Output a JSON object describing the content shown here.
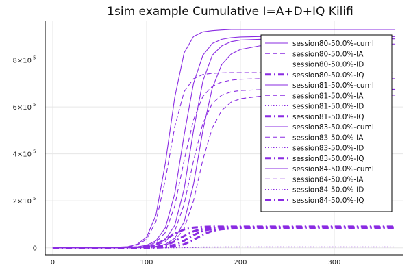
{
  "chart_data": {
    "type": "line",
    "title": "1sim example Cumulative I=A+D+IQ Kilifi",
    "xlabel": "",
    "ylabel": "",
    "xlim": [
      -8,
      373
    ],
    "ylim": [
      -30000,
      965000
    ],
    "x_ticks": [
      0,
      100,
      200,
      300
    ],
    "y_ticks": [
      {
        "value": 0,
        "label": "0",
        "exp": ""
      },
      {
        "value": 200000,
        "label": "2×10",
        "exp": "5"
      },
      {
        "value": 400000,
        "label": "4×10",
        "exp": "5"
      },
      {
        "value": 600000,
        "label": "6×10",
        "exp": "5"
      },
      {
        "value": 800000,
        "label": "8×10",
        "exp": "5"
      }
    ],
    "grid": true,
    "legend_position": "right",
    "color": "#8a2be2",
    "x": [
      0,
      60,
      80,
      90,
      100,
      110,
      120,
      130,
      140,
      150,
      160,
      170,
      180,
      190,
      200,
      220,
      240,
      270,
      300,
      330,
      365
    ],
    "series": [
      {
        "name": "session80-50.0%-cuml",
        "style": "solid",
        "values": [
          0,
          1200,
          5000,
          15000,
          45000,
          140000,
          360000,
          640000,
          830000,
          900000,
          920000,
          925000,
          928000,
          930000,
          930000,
          930000,
          930000,
          930000,
          930000,
          930000,
          930000
        ]
      },
      {
        "name": "session80-50.0%-IA",
        "style": "dash",
        "values": [
          0,
          900,
          4000,
          12000,
          36000,
          112000,
          290000,
          515000,
          665000,
          720000,
          738000,
          743000,
          745000,
          746000,
          746000,
          746000,
          746000,
          746000,
          746000,
          746000,
          746000
        ]
      },
      {
        "name": "session80-50.0%-ID",
        "style": "dot",
        "values": [
          0,
          5,
          20,
          60,
          180,
          550,
          1400,
          2500,
          3200,
          3500,
          3600,
          3620,
          3630,
          3630,
          3630,
          3630,
          3630,
          3630,
          3630,
          3630,
          3630
        ]
      },
      {
        "name": "session80-50.0%-IQ",
        "style": "dashdot",
        "values": [
          0,
          150,
          600,
          1800,
          5000,
          15000,
          35000,
          60000,
          78000,
          86000,
          89000,
          90000,
          90000,
          90000,
          90000,
          90000,
          90000,
          90000,
          90000,
          90000,
          90000
        ]
      },
      {
        "name": "session81-50.0%-cuml",
        "style": "solid",
        "values": [
          0,
          400,
          1500,
          4000,
          11000,
          30000,
          85000,
          230000,
          480000,
          700000,
          820000,
          870000,
          888000,
          895000,
          898000,
          900000,
          900000,
          900000,
          900000,
          900000,
          900000
        ]
      },
      {
        "name": "session81-50.0%-IA",
        "style": "dash",
        "values": [
          0,
          300,
          1100,
          3000,
          8000,
          23000,
          65000,
          178000,
          372000,
          545000,
          645000,
          688000,
          706000,
          714000,
          718000,
          720000,
          720000,
          720000,
          720000,
          720000,
          720000
        ]
      },
      {
        "name": "session81-50.0%-ID",
        "style": "dot",
        "values": [
          0,
          2,
          8,
          20,
          50,
          140,
          400,
          1000,
          2000,
          2900,
          3350,
          3520,
          3580,
          3600,
          3610,
          3610,
          3610,
          3610,
          3610,
          3610,
          3610
        ]
      },
      {
        "name": "session81-50.0%-IQ",
        "style": "dashdot",
        "values": [
          0,
          60,
          200,
          500,
          1400,
          4000,
          11000,
          27000,
          50000,
          70000,
          81000,
          85000,
          87000,
          88000,
          88000,
          88000,
          88000,
          88000,
          88000,
          88000,
          88000
        ]
      },
      {
        "name": "session83-50.0%-cuml",
        "style": "solid",
        "values": [
          0,
          200,
          700,
          1800,
          5000,
          13000,
          35000,
          95000,
          250000,
          500000,
          710000,
          820000,
          860000,
          878000,
          885000,
          888000,
          890000,
          890000,
          890000,
          890000,
          890000
        ]
      },
      {
        "name": "session83-50.0%-IA",
        "style": "dash",
        "values": [
          0,
          150,
          500,
          1300,
          3600,
          9500,
          26000,
          70000,
          185000,
          370000,
          530000,
          615000,
          650000,
          664000,
          670000,
          673000,
          675000,
          675000,
          675000,
          675000,
          675000
        ]
      },
      {
        "name": "session83-50.0%-ID",
        "style": "dot",
        "values": [
          0,
          1,
          4,
          10,
          25,
          70,
          180,
          480,
          1150,
          2100,
          2900,
          3300,
          3450,
          3500,
          3520,
          3520,
          3520,
          3520,
          3520,
          3520,
          3520
        ]
      },
      {
        "name": "session83-50.0%-IQ",
        "style": "dashdot",
        "values": [
          0,
          30,
          100,
          250,
          700,
          1800,
          5000,
          13000,
          30000,
          54000,
          72000,
          80000,
          84000,
          85000,
          86000,
          86000,
          86000,
          86000,
          86000,
          86000,
          86000
        ]
      },
      {
        "name": "session84-50.0%-cuml",
        "style": "solid",
        "values": [
          0,
          100,
          350,
          900,
          2400,
          6000,
          15000,
          40000,
          110000,
          270000,
          500000,
          680000,
          780000,
          825000,
          845000,
          860000,
          865000,
          868000,
          868000,
          868000,
          868000
        ]
      },
      {
        "name": "session84-50.0%-IA",
        "style": "dash",
        "values": [
          0,
          80,
          260,
          650,
          1800,
          4500,
          11000,
          30000,
          82000,
          200000,
          375000,
          510000,
          585000,
          620000,
          635000,
          645000,
          650000,
          650000,
          650000,
          650000,
          650000
        ]
      },
      {
        "name": "session84-50.0%-ID",
        "style": "dot",
        "values": [
          0,
          1,
          2,
          5,
          12,
          30,
          80,
          210,
          560,
          1300,
          2300,
          2950,
          3250,
          3380,
          3430,
          3460,
          3470,
          3470,
          3470,
          3470,
          3470
        ]
      },
      {
        "name": "session84-50.0%-IQ",
        "style": "dashdot",
        "values": [
          0,
          15,
          50,
          130,
          350,
          900,
          2300,
          6000,
          15000,
          33000,
          56000,
          72000,
          79000,
          82000,
          83000,
          84000,
          84000,
          84000,
          84000,
          84000,
          84000
        ]
      }
    ]
  }
}
